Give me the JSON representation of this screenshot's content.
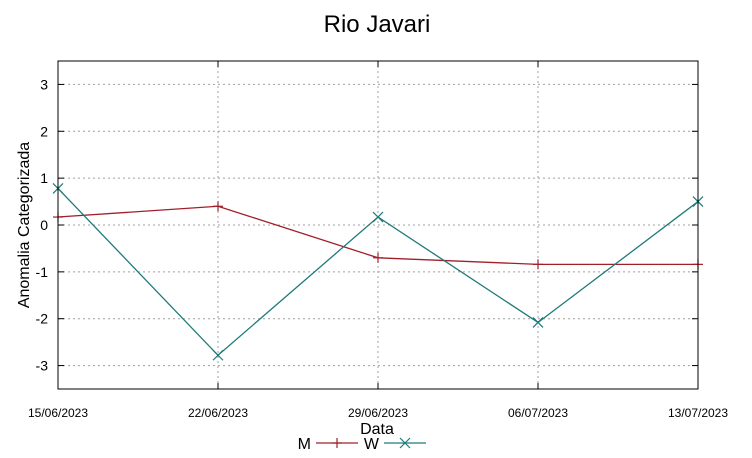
{
  "chart_data": {
    "type": "line",
    "title": "Rio Javari",
    "xlabel": "Data",
    "ylabel": "Anomalia Categorizada",
    "x": [
      "15/06/2023",
      "22/06/2023",
      "29/06/2023",
      "06/07/2023",
      "13/07/2023"
    ],
    "ylim": [
      -3.5,
      3.5
    ],
    "yticks": [
      -3,
      -2,
      -1,
      0,
      1,
      2,
      3
    ],
    "grid": true,
    "legend_position": "bottom",
    "series": [
      {
        "name": "M",
        "marker": "plus",
        "color": "#a0202a",
        "values": [
          0.17,
          0.4,
          -0.7,
          -0.84,
          -0.84
        ]
      },
      {
        "name": "W",
        "marker": "cross",
        "color": "#1e7a7a",
        "values": [
          0.78,
          -2.78,
          0.17,
          -2.08,
          0.5
        ]
      }
    ]
  }
}
